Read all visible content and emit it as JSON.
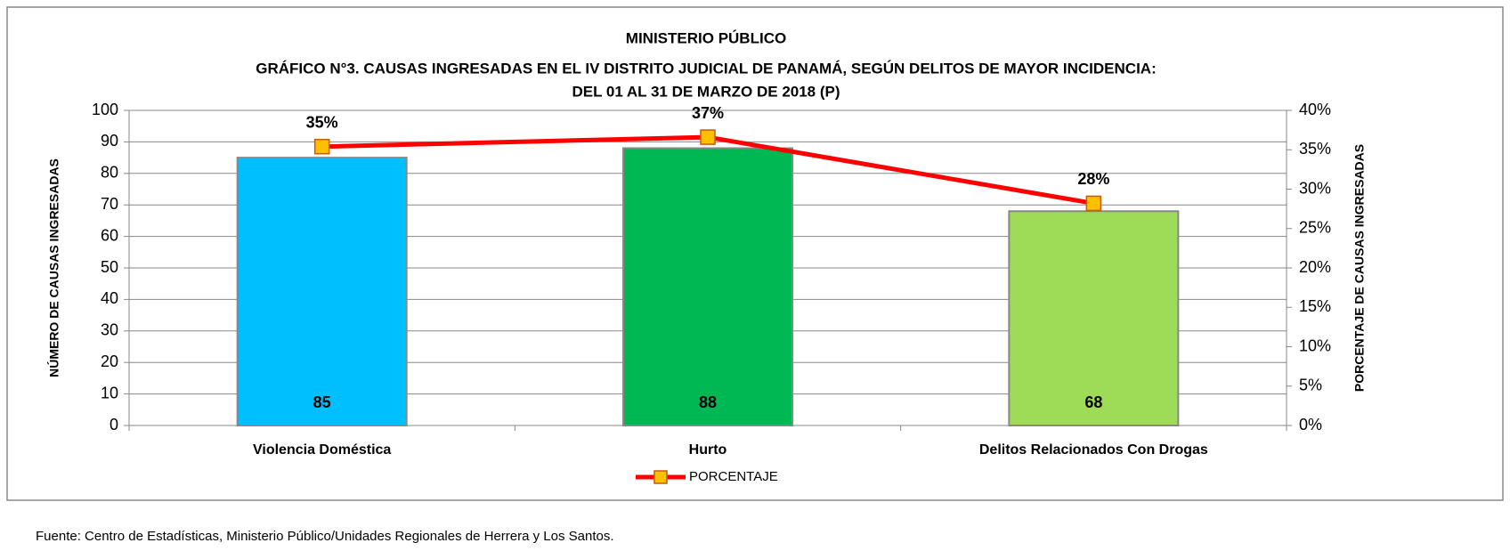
{
  "chart_data": {
    "type": "bar",
    "title": "MINISTERIO PÚBLICO",
    "subtitle": [
      "GRÁFICO N°3. CAUSAS INGRESADAS EN EL IV DISTRITO JUDICIAL DE PANAMÁ, SEGÚN DELITOS DE MAYOR INCIDENCIA:",
      "DEL 01 AL 31 DE MARZO DE 2018 (P)"
    ],
    "ylabel": "NÚMERO DE CAUSAS INGRESADAS",
    "y2label": "PORCENTAJE DE CAUSAS INGRESADAS",
    "categories": [
      "Violencia Doméstica",
      "Hurto",
      "Delitos Relacionados Con Drogas"
    ],
    "values": [
      85,
      88,
      68
    ],
    "colors": [
      "#00bfff",
      "#00b853",
      "#9edb57"
    ],
    "series": [
      {
        "name": "PORCENTAJE",
        "type": "line",
        "axis": "y2",
        "color": "#ff0000",
        "marker_color": "#ffc000",
        "values": [
          35.4,
          36.6,
          28.2
        ],
        "value_labels": [
          "35%",
          "37%",
          "28%"
        ]
      }
    ],
    "ylim": [
      0,
      100
    ],
    "yticks": [
      0,
      10,
      20,
      30,
      40,
      50,
      60,
      70,
      80,
      90,
      100
    ],
    "y2lim": [
      0,
      40
    ],
    "y2ticks": [
      {
        "value": 0,
        "label": "0%"
      },
      {
        "value": 5,
        "label": "5%"
      },
      {
        "value": 10,
        "label": "10%"
      },
      {
        "value": 15,
        "label": "15%"
      },
      {
        "value": 20,
        "label": "20%"
      },
      {
        "value": 25,
        "label": "25%"
      },
      {
        "value": 30,
        "label": "30%"
      },
      {
        "value": 35,
        "label": "35%"
      },
      {
        "value": 40,
        "label": "40%"
      }
    ],
    "grid": true,
    "legend": "bottom",
    "source": "Fuente: Centro de Estadísticas, Ministerio Público/Unidades Regionales de Herrera y Los Santos."
  }
}
